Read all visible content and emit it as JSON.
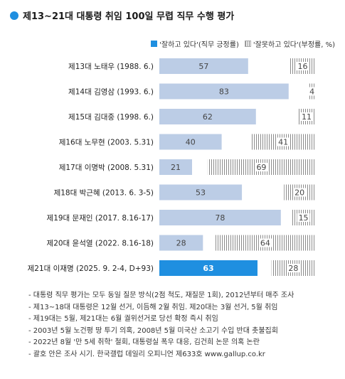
{
  "header": {
    "title": "제13~21대 대통령 취임 100일 무렵 직무 수행 평가"
  },
  "legend": {
    "positive": "'잘하고 있다'(직무 긍정률)",
    "negative": "'잘못하고 있다'(부정률, %)"
  },
  "colors": {
    "positive": "#bccde6",
    "highlight": "#1f8fe0",
    "negative_stripe": "#888888"
  },
  "chart_data": {
    "type": "bar",
    "orientation": "horizontal",
    "stacked": false,
    "xlim": [
      0,
      100
    ],
    "categories": [
      "제13대 노태우 (1988. 6.)",
      "제14대 김영삼 (1993. 6.)",
      "제15대 김대중 (1998. 6.)",
      "제16대 노무현 (2003. 5.31)",
      "제17대 이명박 (2008. 5.31)",
      "제18대 박근혜 (2013. 6. 3-5)",
      "제19대 문재인 (2017. 8.16-17)",
      "제20대 윤석열 (2022. 8.16-18)",
      "제21대 이재명 (2025. 9. 2-4, D+93)"
    ],
    "series": [
      {
        "name": "'잘하고 있다'(직무 긍정률)",
        "values": [
          57,
          83,
          62,
          40,
          21,
          53,
          78,
          28,
          63
        ]
      },
      {
        "name": "'잘못하고 있다'(부정률, %)",
        "values": [
          16,
          4,
          11,
          41,
          69,
          20,
          15,
          64,
          28
        ]
      }
    ],
    "highlight_index": 8
  },
  "notes": [
    "- 대통령 직무 평가는 모두 동일 질문 방식(2점 척도, 재질문 1회), 2012년부터 매주 조사",
    "- 제13~18대 대통령은 12월 선거, 이듬해 2월 취임. 제20대는 3월 선거, 5월 취임",
    "- 제19대는 5월, 제21대는 6월 궐위선거로 당선 확정 즉시 취임",
    "- 2003년 5월 노건평 땅 투기 의혹, 2008년 5월 미국산 소고기 수입 반대 촛불집회",
    "- 2022년 8월 '만 5세 취학' 철회, 대통령실 폭우 대응, 김건희 논문 의혹 논란",
    "- 괄호 안은 조사 시기. 한국갤럽 데일리 오피니언 제633호 www.gallup.co.kr"
  ]
}
